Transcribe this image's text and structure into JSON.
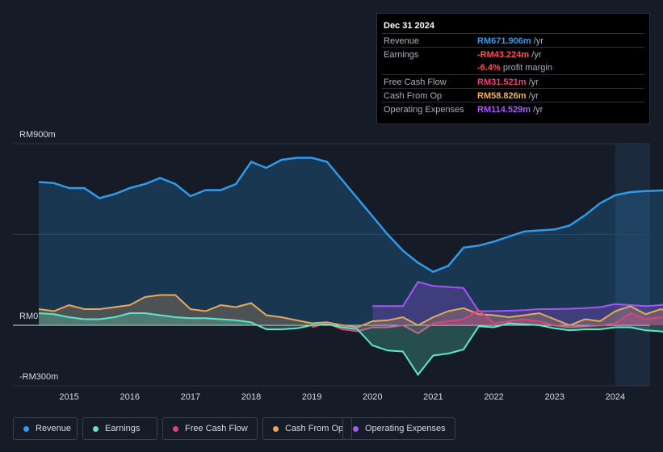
{
  "tooltip": {
    "date": "Dec 31 2024",
    "rows": [
      {
        "label": "Revenue",
        "value": "RM671.906m",
        "unit": "/yr",
        "color": "#2f9bec"
      },
      {
        "label": "Earnings",
        "value": "-RM43.224m",
        "unit": "/yr",
        "color": "#ff4d4d"
      },
      {
        "label": "Free Cash Flow",
        "value": "RM31.521m",
        "unit": "/yr",
        "color": "#e0447f"
      },
      {
        "label": "Cash From Op",
        "value": "RM58.826m",
        "unit": "/yr",
        "color": "#f0b15a"
      },
      {
        "label": "Operating Expenses",
        "value": "RM114.529m",
        "unit": "/yr",
        "color": "#a855f7"
      }
    ],
    "margin_pct": "-6.4%",
    "margin_text": "profit margin"
  },
  "legend": [
    {
      "label": "Revenue",
      "color": "#2f9bec"
    },
    {
      "label": "Earnings",
      "color": "#5ee6c8"
    },
    {
      "label": "Free Cash Flow",
      "color": "#d9467a"
    },
    {
      "label": "Cash From Op",
      "color": "#e8a95a"
    },
    {
      "label": "Operating Expenses",
      "color": "#a855f7"
    }
  ],
  "chart_data": {
    "type": "area",
    "title": "",
    "ylabel": "",
    "xlabel": "",
    "y_axis_labels": [
      "RM900m",
      "RM0",
      "-RM300m"
    ],
    "ylim": [
      -300,
      900
    ],
    "xlim": [
      2014.5,
      2025.0
    ],
    "x_ticks": [
      "2015",
      "2016",
      "2017",
      "2018",
      "2019",
      "2020",
      "2021",
      "2022",
      "2023",
      "2024"
    ],
    "forecast_shade_from": 2024.0,
    "series": [
      {
        "name": "Revenue",
        "color": "#2f9bec",
        "x": [
          2014.5,
          2014.75,
          2015.0,
          2015.25,
          2015.5,
          2015.75,
          2016.0,
          2016.25,
          2016.5,
          2016.75,
          2017.0,
          2017.25,
          2017.5,
          2017.75,
          2018.0,
          2018.25,
          2018.5,
          2018.75,
          2019.0,
          2019.25,
          2019.5,
          2019.75,
          2020.0,
          2020.25,
          2020.5,
          2020.75,
          2021.0,
          2021.25,
          2021.5,
          2021.75,
          2022.0,
          2022.25,
          2022.5,
          2022.75,
          2023.0,
          2023.25,
          2023.5,
          2023.75,
          2024.0,
          2024.25,
          2024.5,
          2024.75,
          2025.0
        ],
        "values": [
          710,
          705,
          680,
          680,
          630,
          650,
          680,
          700,
          730,
          700,
          640,
          670,
          670,
          700,
          810,
          780,
          820,
          830,
          830,
          810,
          720,
          630,
          540,
          450,
          370,
          310,
          265,
          295,
          385,
          395,
          415,
          440,
          465,
          470,
          475,
          495,
          545,
          605,
          645,
          660,
          665,
          668,
          672
        ]
      },
      {
        "name": "Earnings",
        "color": "#5ee6c8",
        "x": [
          2014.5,
          2014.75,
          2015.0,
          2015.25,
          2015.5,
          2015.75,
          2016.0,
          2016.25,
          2016.5,
          2016.75,
          2017.0,
          2017.25,
          2017.5,
          2017.75,
          2018.0,
          2018.25,
          2018.5,
          2018.75,
          2019.0,
          2019.25,
          2019.5,
          2019.75,
          2020.0,
          2020.25,
          2020.5,
          2020.75,
          2021.0,
          2021.25,
          2021.5,
          2021.75,
          2022.0,
          2022.25,
          2022.5,
          2022.75,
          2023.0,
          2023.25,
          2023.5,
          2023.75,
          2024.0,
          2024.25,
          2024.5,
          2024.75,
          2025.0
        ],
        "values": [
          60,
          55,
          40,
          30,
          30,
          40,
          60,
          60,
          50,
          40,
          35,
          35,
          30,
          25,
          15,
          -20,
          -20,
          -15,
          0,
          5,
          -10,
          -20,
          -100,
          -125,
          -130,
          -245,
          -150,
          -140,
          -120,
          -5,
          -10,
          10,
          5,
          0,
          -15,
          -25,
          -20,
          -20,
          -10,
          -10,
          -25,
          -30,
          -43
        ]
      },
      {
        "name": "Free Cash Flow",
        "color": "#d9467a",
        "x": [
          2019.0,
          2019.25,
          2019.5,
          2019.75,
          2020.0,
          2020.25,
          2020.5,
          2020.75,
          2021.0,
          2021.25,
          2021.5,
          2021.75,
          2022.0,
          2022.25,
          2022.5,
          2022.75,
          2023.0,
          2023.25,
          2023.5,
          2023.75,
          2024.0,
          2024.25,
          2024.5,
          2024.75,
          2025.0
        ],
        "values": [
          -10,
          10,
          -20,
          -30,
          -10,
          -10,
          0,
          -40,
          10,
          20,
          30,
          75,
          10,
          20,
          30,
          20,
          0,
          -10,
          -5,
          0,
          10,
          60,
          30,
          40,
          32
        ]
      },
      {
        "name": "Cash From Op",
        "color": "#e8a95a",
        "x": [
          2014.5,
          2014.75,
          2015.0,
          2015.25,
          2015.5,
          2015.75,
          2016.0,
          2016.25,
          2016.5,
          2016.75,
          2017.0,
          2017.25,
          2017.5,
          2017.75,
          2018.0,
          2018.25,
          2018.5,
          2018.75,
          2019.0,
          2019.25,
          2019.5,
          2019.75,
          2020.0,
          2020.25,
          2020.5,
          2020.75,
          2021.0,
          2021.25,
          2021.5,
          2021.75,
          2022.0,
          2022.25,
          2022.5,
          2022.75,
          2023.0,
          2023.25,
          2023.5,
          2023.75,
          2024.0,
          2024.25,
          2024.5,
          2024.75,
          2025.0
        ],
        "values": [
          80,
          70,
          100,
          80,
          80,
          90,
          100,
          140,
          150,
          150,
          80,
          70,
          100,
          90,
          110,
          50,
          40,
          25,
          10,
          15,
          0,
          -10,
          20,
          25,
          40,
          0,
          40,
          70,
          85,
          55,
          50,
          40,
          50,
          60,
          30,
          0,
          30,
          20,
          70,
          95,
          55,
          80,
          59
        ]
      },
      {
        "name": "Operating Expenses",
        "color": "#a855f7",
        "x": [
          2020.0,
          2020.25,
          2020.5,
          2020.75,
          2021.0,
          2021.25,
          2021.5,
          2021.75,
          2022.0,
          2022.25,
          2022.5,
          2022.75,
          2023.0,
          2023.25,
          2023.5,
          2023.75,
          2024.0,
          2024.25,
          2024.5,
          2024.75,
          2025.0
        ],
        "values": [
          95,
          95,
          95,
          215,
          195,
          190,
          185,
          70,
          70,
          72,
          75,
          80,
          80,
          82,
          85,
          90,
          105,
          100,
          95,
          100,
          115
        ]
      }
    ],
    "end_markers": [
      {
        "series": "Revenue",
        "value": 672
      },
      {
        "series": "Operating Expenses",
        "value": 115
      },
      {
        "series": "Cash From Op",
        "value": 59
      },
      {
        "series": "Free Cash Flow",
        "value": 32
      },
      {
        "series": "Earnings",
        "value": -43
      }
    ]
  }
}
